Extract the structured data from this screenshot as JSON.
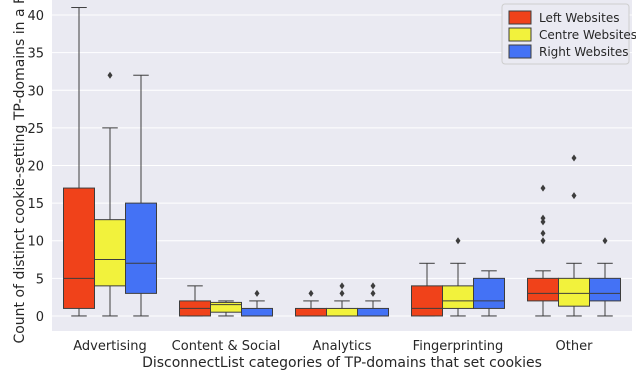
{
  "chart_data": {
    "type": "boxplot",
    "xlabel": "DisconnectList categories of TP-domains that set cookies",
    "ylabel": "Count of distinct cookie-setting TP-domains in a FP",
    "ylim": [
      -2,
      42
    ],
    "yticks": [
      0,
      5,
      10,
      15,
      20,
      25,
      30,
      35,
      40
    ],
    "grid": true,
    "legend_position": "top-right",
    "categories": [
      "Advertising",
      "Content & Social",
      "Analytics",
      "Fingerprinting",
      "Other"
    ],
    "series": [
      {
        "name": "Left Websites",
        "color": "#f0421a",
        "boxes": [
          {
            "whislo": 0,
            "q1": 1,
            "med": 5,
            "q3": 17,
            "whishi": 41,
            "fliers": []
          },
          {
            "whislo": 0,
            "q1": 0,
            "med": 1,
            "q3": 2,
            "whishi": 4,
            "fliers": []
          },
          {
            "whislo": 0,
            "q1": 0,
            "med": 0,
            "q3": 1,
            "whishi": 2,
            "fliers": [
              3
            ]
          },
          {
            "whislo": 0,
            "q1": 0,
            "med": 1,
            "q3": 4,
            "whishi": 7,
            "fliers": []
          },
          {
            "whislo": 0,
            "q1": 2,
            "med": 3,
            "q3": 5,
            "whishi": 6,
            "fliers": [
              10,
              11,
              12.5,
              13,
              17
            ]
          }
        ]
      },
      {
        "name": "Centre Websites",
        "color": "#f2f23c",
        "boxes": [
          {
            "whislo": 0,
            "q1": 4,
            "med": 7.5,
            "q3": 12.8,
            "whishi": 25,
            "fliers": [
              32
            ]
          },
          {
            "whislo": 0,
            "q1": 0.5,
            "med": 1.5,
            "q3": 1.8,
            "whishi": 2,
            "fliers": []
          },
          {
            "whislo": 0,
            "q1": 0,
            "med": 0,
            "q3": 1,
            "whishi": 2,
            "fliers": [
              3,
              4
            ]
          },
          {
            "whislo": 0,
            "q1": 1,
            "med": 2,
            "q3": 4,
            "whishi": 7,
            "fliers": [
              10
            ]
          },
          {
            "whislo": 0,
            "q1": 1.3,
            "med": 3,
            "q3": 5,
            "whishi": 7,
            "fliers": [
              16,
              21
            ]
          }
        ]
      },
      {
        "name": "Right Websites",
        "color": "#4472f5",
        "boxes": [
          {
            "whislo": 0,
            "q1": 3,
            "med": 7,
            "q3": 15,
            "whishi": 32,
            "fliers": []
          },
          {
            "whislo": 0,
            "q1": 0,
            "med": 0,
            "q3": 1,
            "whishi": 2,
            "fliers": [
              3
            ]
          },
          {
            "whislo": 0,
            "q1": 0,
            "med": 0,
            "q3": 1,
            "whishi": 2,
            "fliers": [
              3,
              4
            ]
          },
          {
            "whislo": 0,
            "q1": 1,
            "med": 2,
            "q3": 5,
            "whishi": 6,
            "fliers": []
          },
          {
            "whislo": 0,
            "q1": 2,
            "med": 3,
            "q3": 5,
            "whishi": 7,
            "fliers": [
              10
            ]
          }
        ]
      }
    ]
  }
}
